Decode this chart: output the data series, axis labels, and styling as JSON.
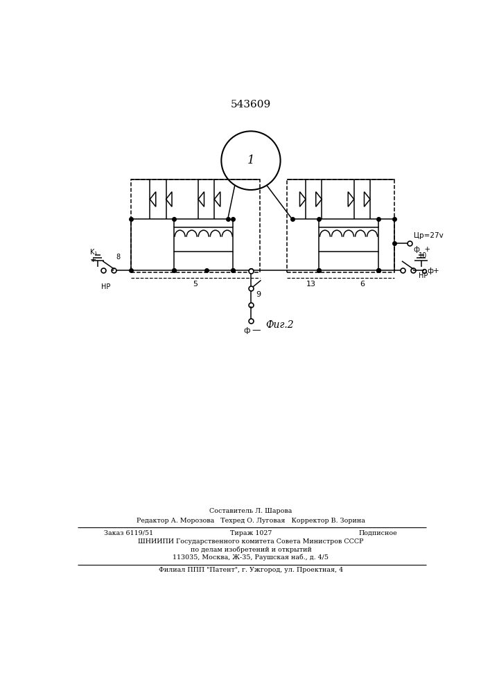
{
  "title": "543609",
  "bg_color": "#ffffff",
  "line_color": "#000000",
  "fig_width": 7.07,
  "fig_height": 10.0,
  "footer": {
    "line1": "Составитель Л. Шарова",
    "line2": "Редактор А. Морозова   Техред О. Луговая   Корректор В. Зорина",
    "line3a": "Заказ 6119/51",
    "line3b": "Тираж 1027",
    "line3c": "Подписное",
    "line4": "ШНИИПИ Государственного комитета Совета Министров СССР",
    "line5": "по делам изобретений и открытий",
    "line6": "113035, Москва, Ж-35, Раушская наб., д. 4/5",
    "line7": "Филиал ППП \"Патент\", г. Ужгород, ул. Проектная, 4"
  }
}
